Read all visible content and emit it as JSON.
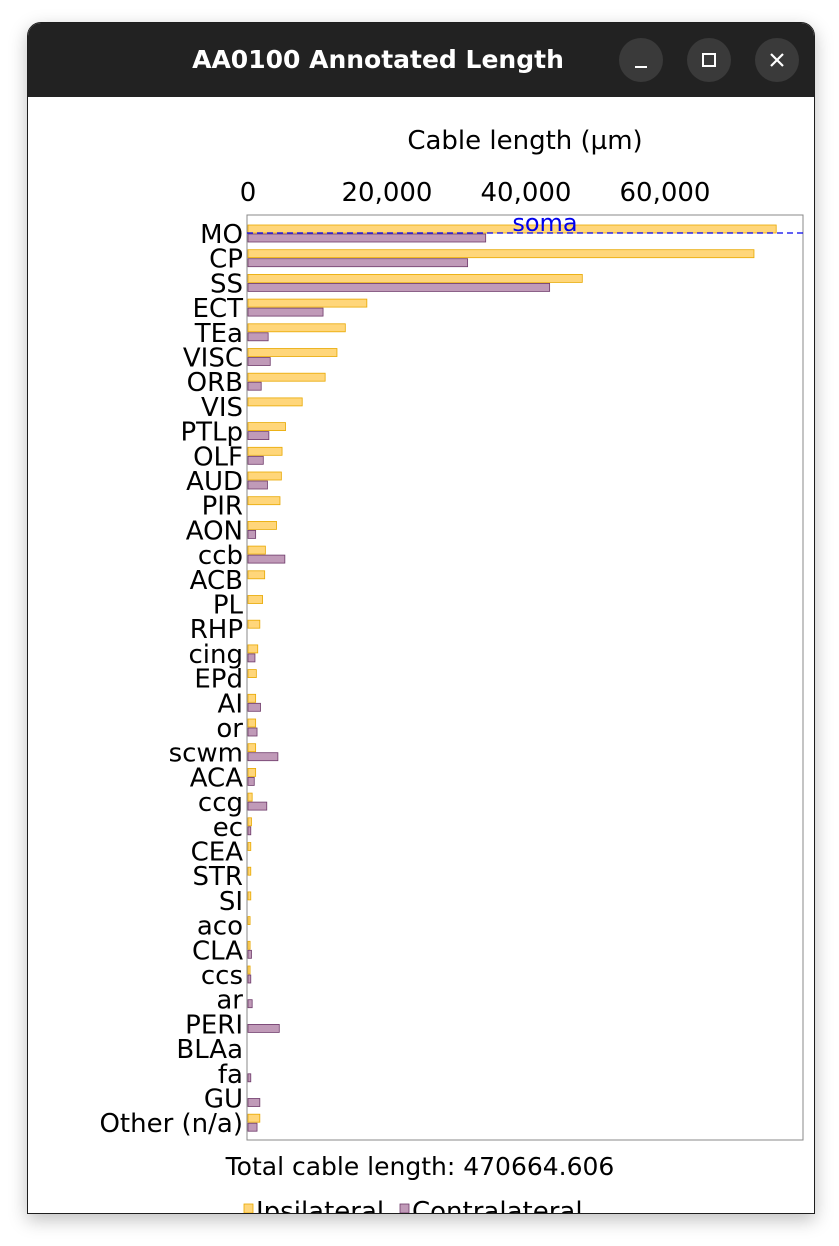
{
  "window": {
    "title": "AA0100 Annotated Length",
    "minimize_icon": "minimize-icon",
    "maximize_icon": "maximize-icon",
    "close_icon": "close-icon",
    "titlebar_color": "#222222"
  },
  "chart_data": {
    "type": "bar",
    "orientation": "horizontal",
    "xlabel": "Cable length (µm)",
    "x_ticks": [
      "0",
      "20,000",
      "40,000",
      "60,000"
    ],
    "x_tick_values": [
      0,
      20000,
      40000,
      60000
    ],
    "xlim": [
      0,
      80000
    ],
    "categories": [
      "MO",
      "CP",
      "SS",
      "ECT",
      "TEa",
      "VISC",
      "ORB",
      "VIS",
      "PTLp",
      "OLF",
      "AUD",
      "PIR",
      "AON",
      "ccb",
      "ACB",
      "PL",
      "RHP",
      "cing",
      "EPd",
      "AI",
      "or",
      "scwm",
      "ACA",
      "ccg",
      "ec",
      "CEA",
      "STR",
      "SI",
      "aco",
      "CLA",
      "ccs",
      "ar",
      "PERI",
      "BLAa",
      "fa",
      "GU",
      "Other (n/a)"
    ],
    "series": [
      {
        "name": "Ipsilateral",
        "color": "#FFD67A",
        "stroke": "#E8A800",
        "values": [
          76000,
          72800,
          48100,
          17100,
          14000,
          12800,
          11100,
          7800,
          5400,
          4900,
          4800,
          4600,
          4100,
          2500,
          2400,
          2100,
          1700,
          1400,
          1200,
          1100,
          1100,
          1100,
          1100,
          600,
          500,
          400,
          400,
          400,
          300,
          300,
          300,
          0,
          0,
          0,
          0,
          0,
          1700
        ]
      },
      {
        "name": "Contralateral",
        "color": "#C09AB8",
        "stroke": "#6E3A6A",
        "values": [
          34200,
          31600,
          43400,
          10800,
          2900,
          3200,
          1900,
          0,
          3000,
          2200,
          2800,
          0,
          1100,
          5300,
          0,
          0,
          0,
          1000,
          0,
          1800,
          1300,
          4300,
          900,
          2700,
          400,
          0,
          0,
          0,
          0,
          500,
          400,
          600,
          4500,
          0,
          400,
          1700,
          1300
        ]
      }
    ],
    "annotation": {
      "text": "soma",
      "category": "MO",
      "style": "dashed-line",
      "color": "#0000EE"
    },
    "footer": "Total cable length: 470664.606",
    "legend_position": "bottom",
    "grid": false
  }
}
